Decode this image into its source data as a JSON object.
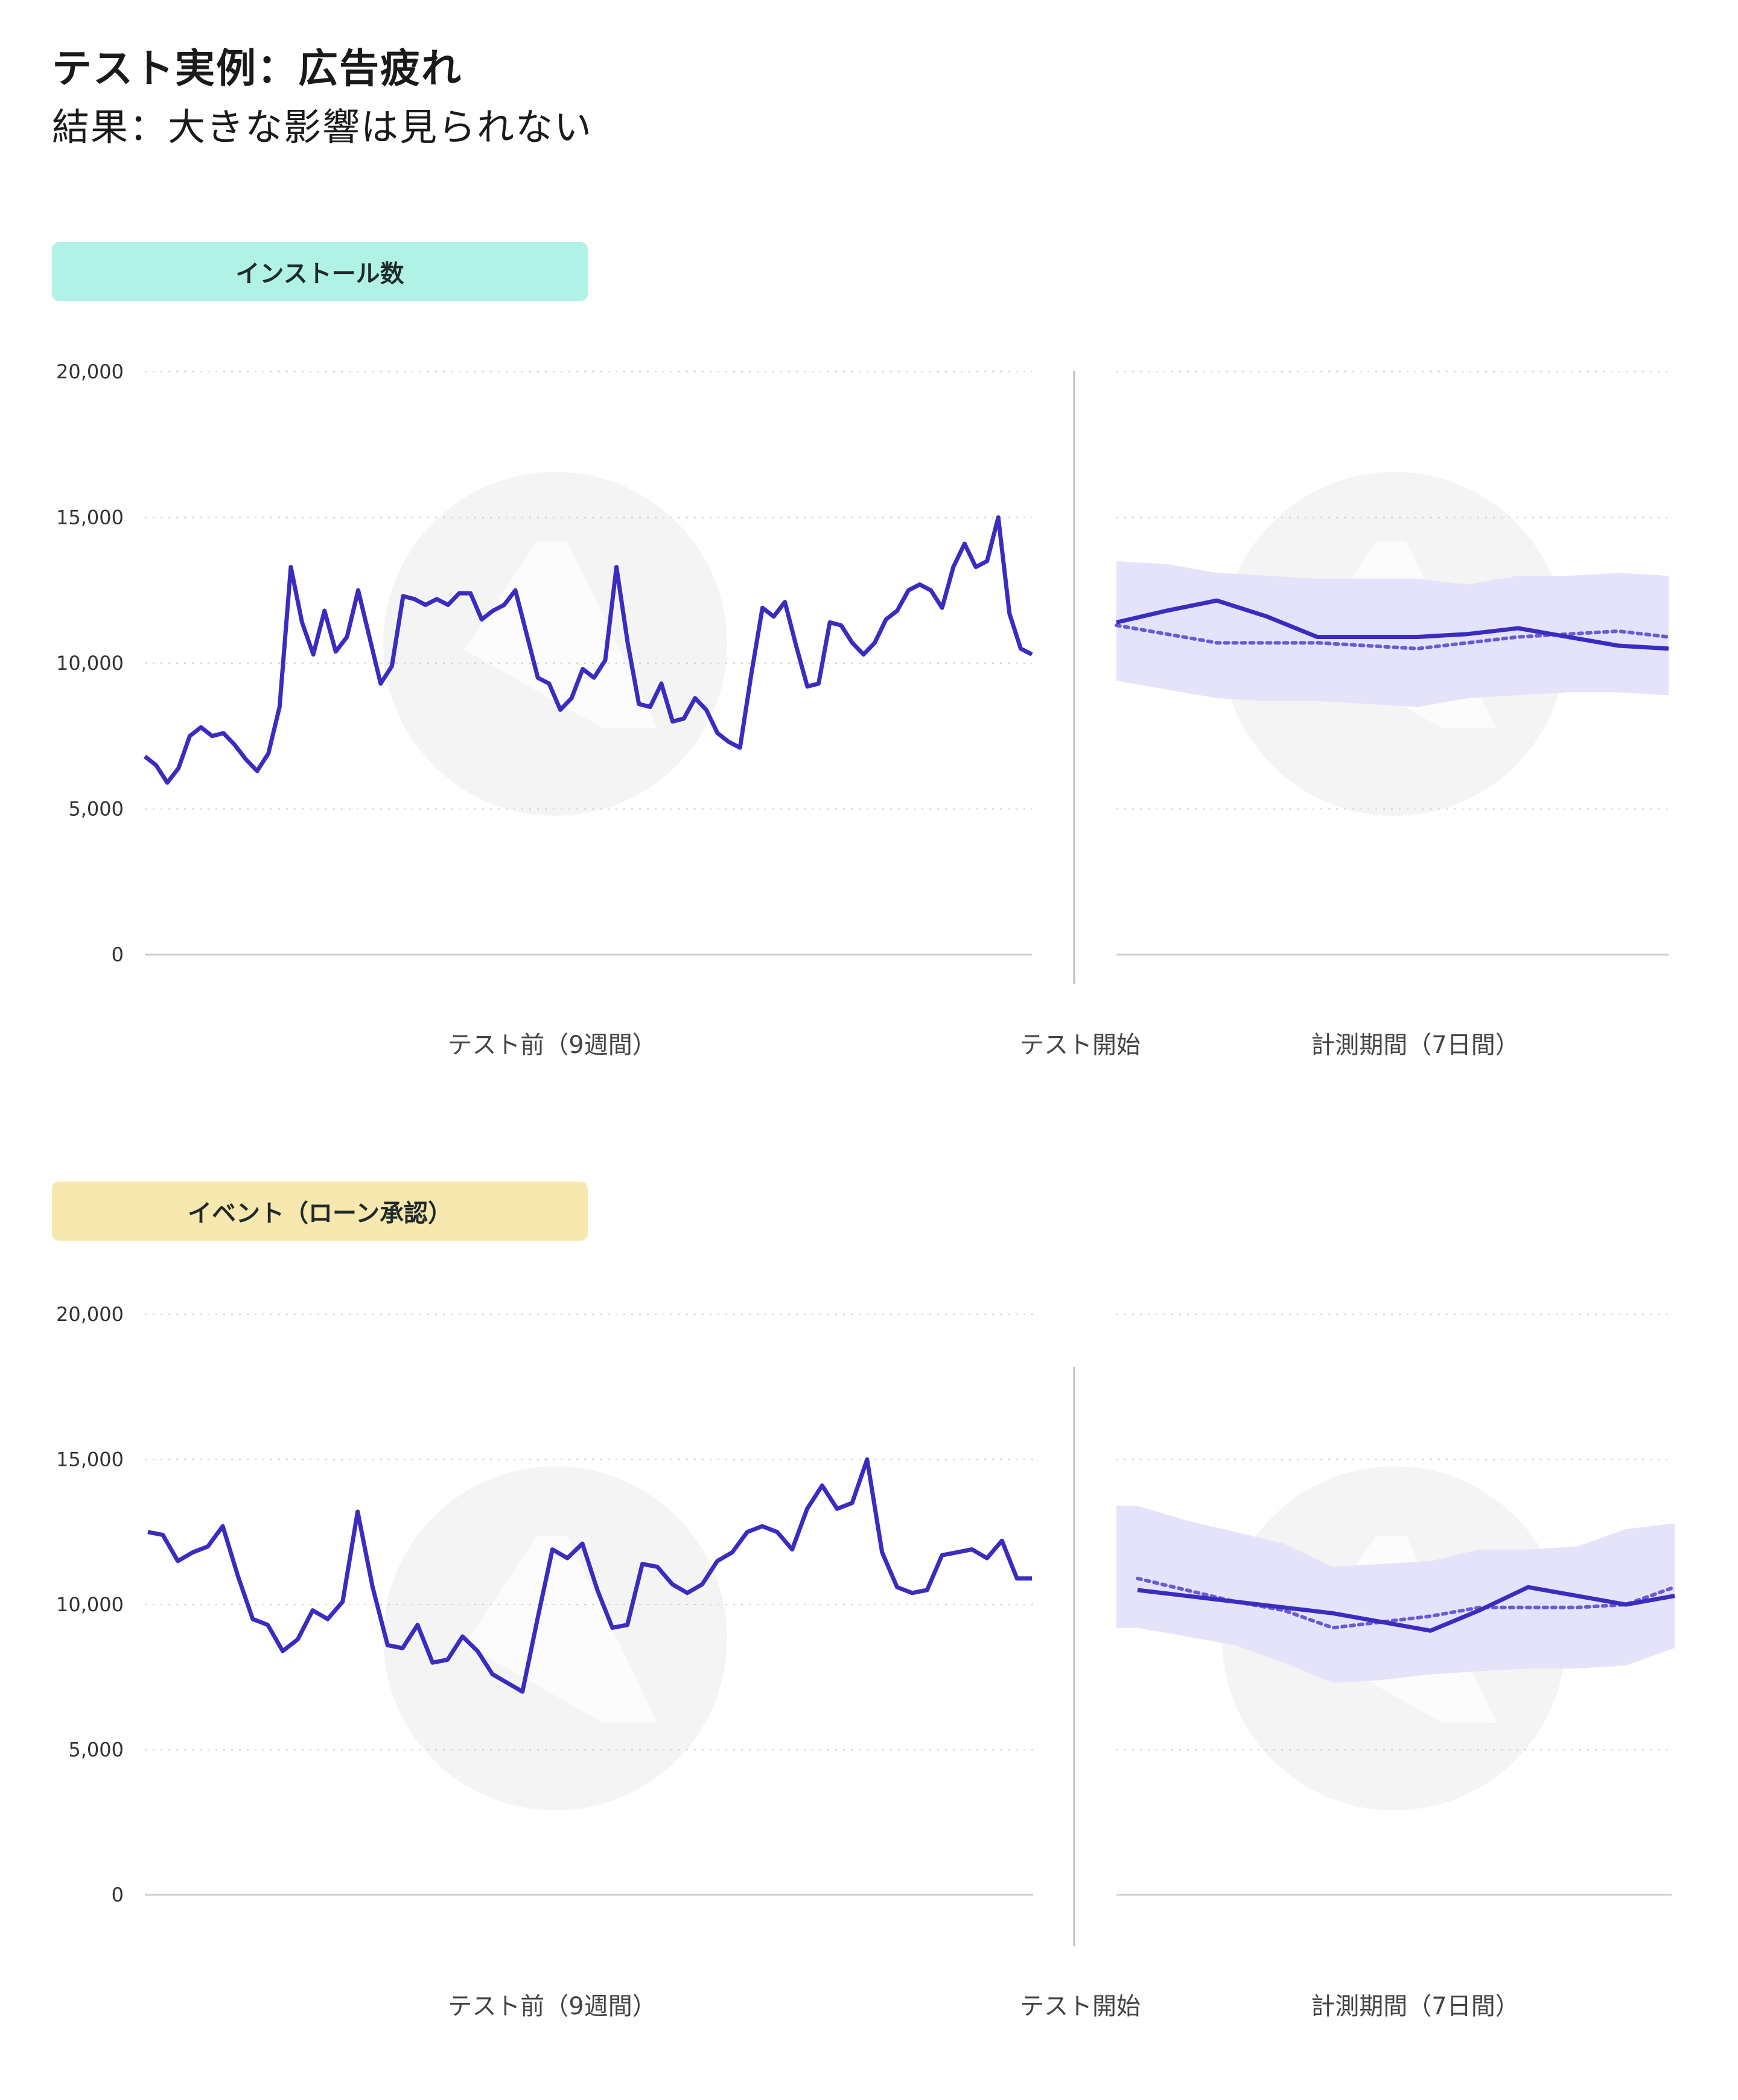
{
  "header": {
    "title": "テスト実例：広告疲れ",
    "subtitle": "結果：大きな影響は見られない"
  },
  "colors": {
    "line": "#3b2cc0",
    "band": "#e5e3fa",
    "grid": "#cfcfcf",
    "watermark": "#f4f4f4",
    "badge_installs": "#b0f2e6",
    "badge_events": "#f6e8ae"
  },
  "chart_data": [
    {
      "type": "line",
      "badge": "インストール数",
      "ylim": [
        0,
        20000
      ],
      "yticks": [
        "20,000",
        "15,000",
        "10,000",
        "5,000",
        "0"
      ],
      "segment_labels": {
        "before": "テスト前（9週間）",
        "start": "テスト開始",
        "after": "計測期間（7日間）"
      },
      "pre_test": [
        6800,
        6500,
        5900,
        6400,
        7500,
        7800,
        7500,
        7600,
        7200,
        6700,
        6300,
        6900,
        8500,
        13300,
        11400,
        10300,
        11800,
        10400,
        10900,
        12500,
        10900,
        9300,
        9900,
        12300,
        12200,
        12000,
        12200,
        12000,
        12400,
        12400,
        11500,
        11800,
        12000,
        12500,
        11000,
        9500,
        9300,
        8400,
        8800,
        9800,
        9500,
        10100,
        13300,
        10700,
        8600,
        8500,
        9300,
        8000,
        8100,
        8800,
        8400,
        7600,
        7300,
        7100,
        9600,
        11900,
        11600,
        12100,
        10600,
        9200,
        9300,
        11400,
        11300,
        10700,
        10300,
        10700,
        11500,
        11800,
        12500,
        12700,
        12500,
        11900,
        13300,
        14100,
        13300,
        13500,
        15000,
        11700,
        10500,
        10300
      ],
      "post_test": {
        "actual": [
          11400,
          11800,
          12150,
          11600,
          10900,
          10900,
          10900,
          11000,
          11200,
          10900,
          10600,
          10500
        ],
        "expected": [
          11300,
          11000,
          10700,
          10700,
          10700,
          10600,
          10500,
          10700,
          10900,
          11000,
          11100,
          10900
        ],
        "upper": [
          13500,
          13400,
          13100,
          13000,
          12900,
          12900,
          12900,
          12700,
          13000,
          13000,
          13100,
          13000
        ],
        "lower": [
          9400,
          9100,
          8800,
          8700,
          8700,
          8600,
          8500,
          8800,
          8900,
          9000,
          9000,
          8900
        ]
      }
    },
    {
      "type": "line",
      "badge": "イベント（ローン承認）",
      "ylim": [
        0,
        20000
      ],
      "yticks": [
        "20,000",
        "15,000",
        "10,000",
        "5,000",
        "0"
      ],
      "segment_labels": {
        "before": "テスト前（9週間）",
        "start": "テスト開始",
        "after": "計測期間（7日間）"
      },
      "pre_test": [
        12500,
        12400,
        11500,
        11800,
        12000,
        12700,
        11000,
        9500,
        9300,
        8400,
        8800,
        9800,
        9500,
        10100,
        13200,
        10600,
        8600,
        8500,
        9300,
        8000,
        8100,
        8900,
        8400,
        7600,
        7300,
        7000,
        9500,
        11900,
        11600,
        12100,
        10500,
        9200,
        9300,
        11400,
        11300,
        10700,
        10400,
        10700,
        11500,
        11800,
        12500,
        12700,
        12500,
        11900,
        13300,
        14100,
        13300,
        13500,
        15000,
        11800,
        10600,
        10400,
        10500,
        11700,
        11800,
        11900,
        11600,
        12200,
        10900,
        10900
      ],
      "post_test": {
        "actual": [
          10500,
          10300,
          10100,
          9900,
          9700,
          9400,
          9100,
          9800,
          10600,
          10300,
          10000,
          10300
        ],
        "expected": [
          10900,
          10500,
          10100,
          9800,
          9200,
          9400,
          9600,
          9900,
          9900,
          9900,
          10000,
          10600
        ],
        "upper": [
          13400,
          12900,
          12500,
          12100,
          11300,
          11400,
          11500,
          11900,
          11900,
          12000,
          12600,
          12800
        ],
        "lower": [
          9200,
          8900,
          8600,
          8000,
          7300,
          7400,
          7600,
          7700,
          7800,
          7800,
          7900,
          8500
        ]
      }
    }
  ]
}
